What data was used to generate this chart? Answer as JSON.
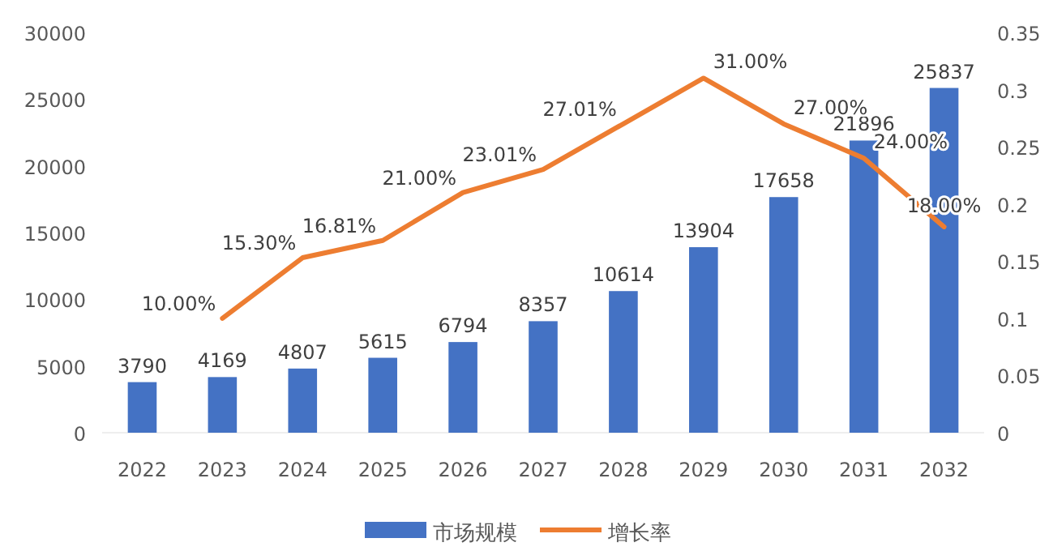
{
  "chart_data": {
    "type": "bar",
    "categories": [
      "2022",
      "2023",
      "2024",
      "2025",
      "2026",
      "2027",
      "2028",
      "2029",
      "2030",
      "2031",
      "2032"
    ],
    "series": [
      {
        "name": "市场规模",
        "color": "#4472c4",
        "values": [
          3790,
          4169,
          4807,
          5615,
          6794,
          8357,
          10614,
          13904,
          17658,
          21896,
          25837
        ],
        "value_labels": [
          "3790",
          "4169",
          "4807",
          "5615",
          "6794",
          "8357",
          "10614",
          "13904",
          "17658",
          "21896",
          "25837"
        ]
      },
      {
        "name": "增长率",
        "type": "line",
        "axis": "y2",
        "color": "#ed7d31",
        "values": [
          null,
          0.1,
          0.153,
          0.1681,
          0.21,
          0.2301,
          0.2701,
          0.31,
          0.27,
          0.24,
          0.18
        ],
        "value_labels": [
          null,
          "10.00%",
          "15.30%",
          "16.81%",
          "21.00%",
          "23.01%",
          "27.01%",
          "31.00%",
          "27.00%",
          "24.00%",
          "18.00%"
        ]
      }
    ],
    "ylim": [
      0,
      30000
    ],
    "yticks": [
      0,
      5000,
      10000,
      15000,
      20000,
      25000,
      30000
    ],
    "y2lim": [
      0,
      0.35
    ],
    "y2ticks": [
      0,
      0.05,
      0.1,
      0.15,
      0.2,
      0.25,
      0.3,
      0.35
    ],
    "legend": "bottom",
    "marker": "none",
    "line_style": "solid"
  }
}
